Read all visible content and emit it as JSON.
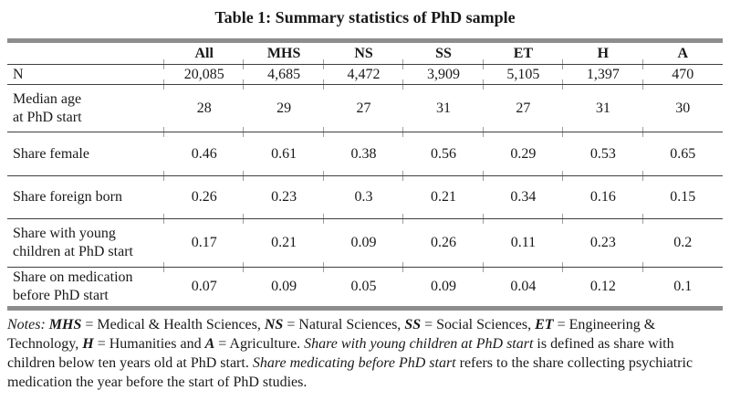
{
  "title": "Table 1: Summary statistics of PhD sample",
  "table": {
    "header": [
      "",
      "All",
      "MHS",
      "NS",
      "SS",
      "ET",
      "H",
      "A"
    ],
    "rows": [
      {
        "label": "N",
        "values": [
          "20,085",
          "4,685",
          "4,472",
          "3,909",
          "5,105",
          "1,397",
          "470"
        ]
      },
      {
        "label": "Median age\nat PhD start",
        "values": [
          "28",
          "29",
          "27",
          "31",
          "27",
          "31",
          "30"
        ]
      },
      {
        "label": "Share female",
        "values": [
          "0.46",
          "0.61",
          "0.38",
          "0.56",
          "0.29",
          "0.53",
          "0.65"
        ]
      },
      {
        "label": "Share foreign born",
        "values": [
          "0.26",
          "0.23",
          "0.3",
          "0.21",
          "0.34",
          "0.16",
          "0.15"
        ]
      },
      {
        "label": "Share with young\nchildren at PhD start",
        "values": [
          "0.17",
          "0.21",
          "0.09",
          "0.26",
          "0.11",
          "0.23",
          "0.2"
        ]
      },
      {
        "label": "Share on medication\nbefore PhD start",
        "values": [
          "0.07",
          "0.09",
          "0.05",
          "0.09",
          "0.04",
          "0.12",
          "0.1"
        ]
      }
    ]
  },
  "notes": {
    "segments": [
      {
        "text": "Notes: ",
        "style": "italic"
      },
      {
        "text": "MHS",
        "style": "bold-italic"
      },
      {
        "text": " = Medical & Health Sciences, ",
        "style": "normal"
      },
      {
        "text": "NS",
        "style": "bold-italic"
      },
      {
        "text": " = Natural Sciences, ",
        "style": "normal"
      },
      {
        "text": "SS",
        "style": "bold-italic"
      },
      {
        "text": " = Social Sciences, ",
        "style": "normal"
      },
      {
        "text": "ET",
        "style": "bold-italic"
      },
      {
        "text": " = Engineering & Technology, ",
        "style": "normal"
      },
      {
        "text": "H",
        "style": "bold-italic"
      },
      {
        "text": " = Humanities and ",
        "style": "normal"
      },
      {
        "text": "A",
        "style": "bold-italic"
      },
      {
        "text": " = Agriculture. ",
        "style": "normal"
      },
      {
        "text": "Share with young children at PhD start",
        "style": "italic"
      },
      {
        "text": " is defined as share with children below ten years old at PhD start. ",
        "style": "normal"
      },
      {
        "text": "Share medicating before PhD start",
        "style": "italic"
      },
      {
        "text": " refers to the share collecting psychiatric medication the year before the start of PhD studies.",
        "style": "normal"
      }
    ]
  },
  "colors": {
    "rule_gray": "#8d8d8d",
    "line_dark": "#3f3f3f",
    "tick_gray": "#9f9f9f",
    "text": "#1a1a1a"
  }
}
